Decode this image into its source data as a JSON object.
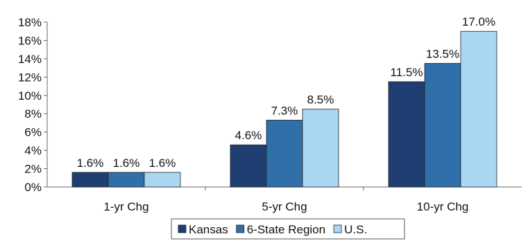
{
  "chart_data": {
    "type": "bar",
    "categories": [
      "1-yr Chg",
      "5-yr Chg",
      "10-yr Chg"
    ],
    "series": [
      {
        "name": "Kansas",
        "values": [
          1.6,
          4.6,
          11.5
        ],
        "labels": [
          "1.6%",
          "4.6%",
          "11.5%"
        ],
        "color": "#1f3f73"
      },
      {
        "name": "6-State Region",
        "values": [
          1.6,
          7.3,
          13.5
        ],
        "labels": [
          "1.6%",
          "7.3%",
          "13.5%"
        ],
        "color": "#2f6faa"
      },
      {
        "name": "U.S.",
        "values": [
          1.6,
          8.5,
          17.0
        ],
        "labels": [
          "1.6%",
          "8.5%",
          "17.0%"
        ],
        "color": "#a9d6f2"
      }
    ],
    "y_ticks": [
      "0%",
      "2%",
      "4%",
      "6%",
      "8%",
      "10%",
      "12%",
      "14%",
      "16%",
      "18%"
    ],
    "ylim": [
      0,
      18
    ],
    "grid": false,
    "legend_position": "bottom"
  }
}
